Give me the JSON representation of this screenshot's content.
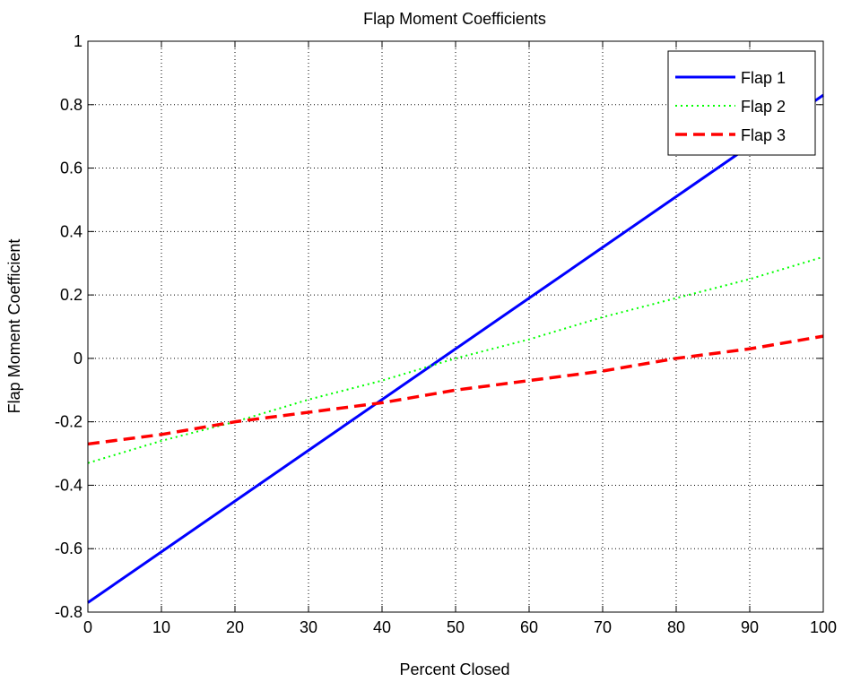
{
  "chart_data": {
    "type": "line",
    "title": "Flap Moment Coefficients",
    "xlabel": "Percent Closed",
    "ylabel": "Flap Moment Coefficient",
    "xlim": [
      0,
      100
    ],
    "ylim": [
      -0.8,
      1
    ],
    "xticks": [
      0,
      10,
      20,
      30,
      40,
      50,
      60,
      70,
      80,
      90,
      100
    ],
    "yticks": [
      -0.8,
      -0.6,
      -0.4,
      -0.2,
      0,
      0.2,
      0.4,
      0.6,
      0.8,
      1
    ],
    "xtick_labels": [
      "0",
      "10",
      "20",
      "30",
      "40",
      "50",
      "60",
      "70",
      "80",
      "90",
      "100"
    ],
    "ytick_labels": [
      "-0.8",
      "-0.6",
      "-0.4",
      "-0.2",
      "0",
      "0.2",
      "0.4",
      "0.6",
      "0.8",
      "1"
    ],
    "grid": true,
    "legend_position": "top-right",
    "x": [
      0,
      10,
      20,
      30,
      40,
      50,
      60,
      70,
      80,
      90,
      100
    ],
    "series": [
      {
        "name": "Flap 1",
        "color": "#0000ff",
        "style": "solid",
        "values": [
          -0.77,
          -0.61,
          -0.45,
          -0.29,
          -0.13,
          0.03,
          0.19,
          0.35,
          0.51,
          0.67,
          0.83
        ]
      },
      {
        "name": "Flap 2",
        "color": "#00ff00",
        "style": "dotted",
        "values": [
          -0.33,
          -0.26,
          -0.2,
          -0.13,
          -0.07,
          0.0,
          0.06,
          0.13,
          0.19,
          0.25,
          0.32
        ]
      },
      {
        "name": "Flap 3",
        "color": "#ff0000",
        "style": "dashed",
        "values": [
          -0.27,
          -0.24,
          -0.2,
          -0.17,
          -0.14,
          -0.1,
          -0.07,
          -0.04,
          0.0,
          0.03,
          0.07
        ]
      }
    ]
  }
}
